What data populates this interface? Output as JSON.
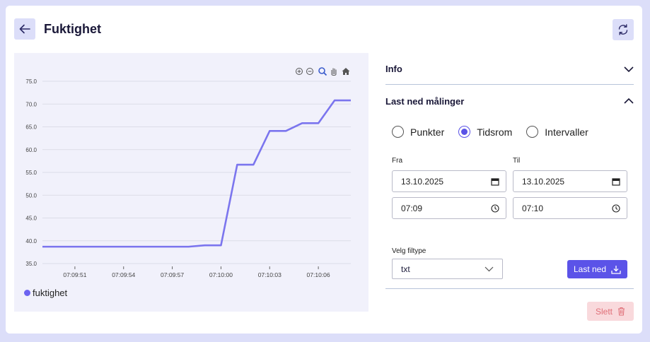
{
  "header": {
    "title": "Fuktighet"
  },
  "chart_data": {
    "type": "line",
    "x": [
      "07:09:49",
      "07:09:50",
      "07:09:51",
      "07:09:52",
      "07:09:53",
      "07:09:54",
      "07:09:55",
      "07:09:56",
      "07:09:57",
      "07:09:58",
      "07:09:59",
      "07:10:00",
      "07:10:01",
      "07:10:02",
      "07:10:03",
      "07:10:04",
      "07:10:05",
      "07:10:06",
      "07:10:07",
      "07:10:08"
    ],
    "x_ticks": [
      "07:09:51",
      "07:09:54",
      "07:09:57",
      "07:10:00",
      "07:10:03",
      "07:10:06"
    ],
    "series": [
      {
        "name": "fuktighet",
        "values": [
          38.7,
          38.7,
          38.7,
          38.7,
          38.7,
          38.7,
          38.7,
          38.7,
          38.7,
          38.7,
          39.0,
          39.0,
          56.7,
          56.7,
          64.1,
          64.1,
          65.8,
          65.8,
          70.8,
          70.8
        ]
      }
    ],
    "y_ticks": [
      "75.0",
      "70.0",
      "65.0",
      "60.0",
      "55.0",
      "50.0",
      "45.0",
      "40.0",
      "35.0"
    ],
    "ylim": [
      35,
      75
    ],
    "grid": "horizontal",
    "legend": "bottom-left",
    "color": "#7b75ee"
  },
  "panel": {
    "info_label": "Info",
    "download_label": "Last ned målinger",
    "modes": [
      {
        "label": "Punkter",
        "selected": false
      },
      {
        "label": "Tidsrom",
        "selected": true
      },
      {
        "label": "Intervaller",
        "selected": false
      }
    ],
    "from_label": "Fra",
    "to_label": "Til",
    "from_date": "13.10.2025",
    "to_date": "13.10.2025",
    "from_time": "07:09",
    "to_time": "07:10",
    "filetype_label": "Velg filtype",
    "filetype_value": "txt",
    "download_button": "Last ned",
    "delete_button": "Slett"
  },
  "colors": {
    "accent": "#5b53e8",
    "background": "#dcdef9",
    "danger": "#e06f78"
  }
}
